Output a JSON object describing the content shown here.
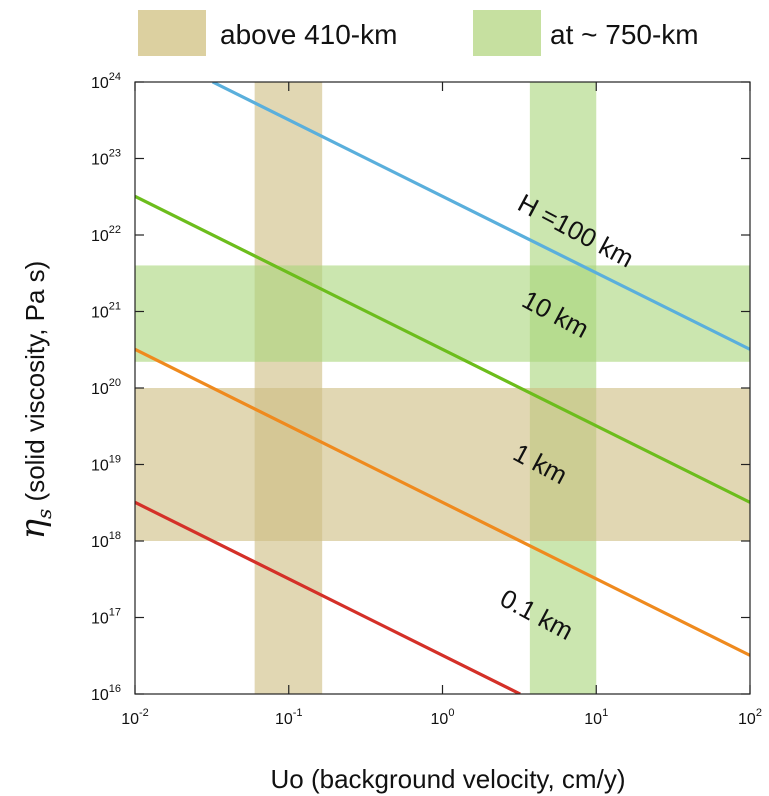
{
  "chart_data": {
    "type": "line",
    "title": "",
    "xlabel": "Uo  (background velocity, cm/y)",
    "ylabel": {
      "symbol": "η",
      "subscript": "s",
      "text": " (solid viscosity, Pa s)"
    },
    "xscale": "log",
    "yscale": "log",
    "xlim": [
      0.01,
      100
    ],
    "ylim": [
      1e+16,
      1e+24
    ],
    "x_ticks": [
      {
        "value": 0.01,
        "base": "10",
        "exp": "-2"
      },
      {
        "value": 0.1,
        "base": "10",
        "exp": "-1"
      },
      {
        "value": 1,
        "base": "10",
        "exp": "0"
      },
      {
        "value": 10,
        "base": "10",
        "exp": "1"
      },
      {
        "value": 100,
        "base": "10",
        "exp": "2"
      }
    ],
    "y_ticks": [
      {
        "value": 1e+16,
        "base": "10",
        "exp": "16"
      },
      {
        "value": 1e+17,
        "base": "10",
        "exp": "17"
      },
      {
        "value": 1e+18,
        "base": "10",
        "exp": "18"
      },
      {
        "value": 1e+19,
        "base": "10",
        "exp": "19"
      },
      {
        "value": 1e+20,
        "base": "10",
        "exp": "20"
      },
      {
        "value": 1e+21,
        "base": "10",
        "exp": "21"
      },
      {
        "value": 1e+22,
        "base": "10",
        "exp": "22"
      },
      {
        "value": 1e+23,
        "base": "10",
        "exp": "23"
      },
      {
        "value": 1e+24,
        "base": "10",
        "exp": "24"
      }
    ],
    "grid": false,
    "legend": {
      "placement": "top",
      "entries": [
        {
          "label": "above 410-km",
          "color": "#dcd0a0"
        },
        {
          "label": "at ~ 750-km",
          "color": "#c6e0a0"
        }
      ]
    },
    "bands": [
      {
        "region": "above 410-km",
        "axis": "x",
        "range": [
          0.06,
          0.165
        ],
        "color": "#cdbd80",
        "opacity": 0.6
      },
      {
        "region": "at ~ 750-km",
        "axis": "x",
        "range": [
          3.7,
          10
        ],
        "color": "#a8d67a",
        "opacity": 0.6
      },
      {
        "region": "above 410-km",
        "axis": "y",
        "range": [
          1e+18,
          1e+20
        ],
        "color": "#cdbd80",
        "opacity": 0.6
      },
      {
        "region": "at ~ 750-km",
        "axis": "y",
        "range": [
          2.2e+20,
          4e+21
        ],
        "color": "#a8d67a",
        "opacity": 0.6
      }
    ],
    "series": [
      {
        "label": "H =100 km",
        "color": "#5aafdc",
        "x": [
          0.032,
          100
        ],
        "y": [
          1e+24,
          3.2e+20
        ],
        "label_x": 3.0,
        "label_y": 2.2e+22,
        "label_angle": 28
      },
      {
        "label": "10 km",
        "color": "#6cbd1c",
        "x": [
          0.01,
          100
        ],
        "y": [
          3.2e+22,
          3.2e+18
        ],
        "label_x": 3.2,
        "label_y": 1.2e+21,
        "label_angle": 28
      },
      {
        "label": "1 km",
        "color": "#ef8a1e",
        "x": [
          0.01,
          100
        ],
        "y": [
          3.2e+20,
          3.2e+16
        ],
        "label_x": 2.8,
        "label_y": 1.2e+19,
        "label_angle": 28
      },
      {
        "label": "0.1 km",
        "color": "#d43028",
        "x": [
          0.01,
          3.2
        ],
        "y": [
          3.2e+18,
          1e+16
        ],
        "label_x": 2.3,
        "label_y": 1.5e+17,
        "label_angle": 28
      }
    ]
  }
}
